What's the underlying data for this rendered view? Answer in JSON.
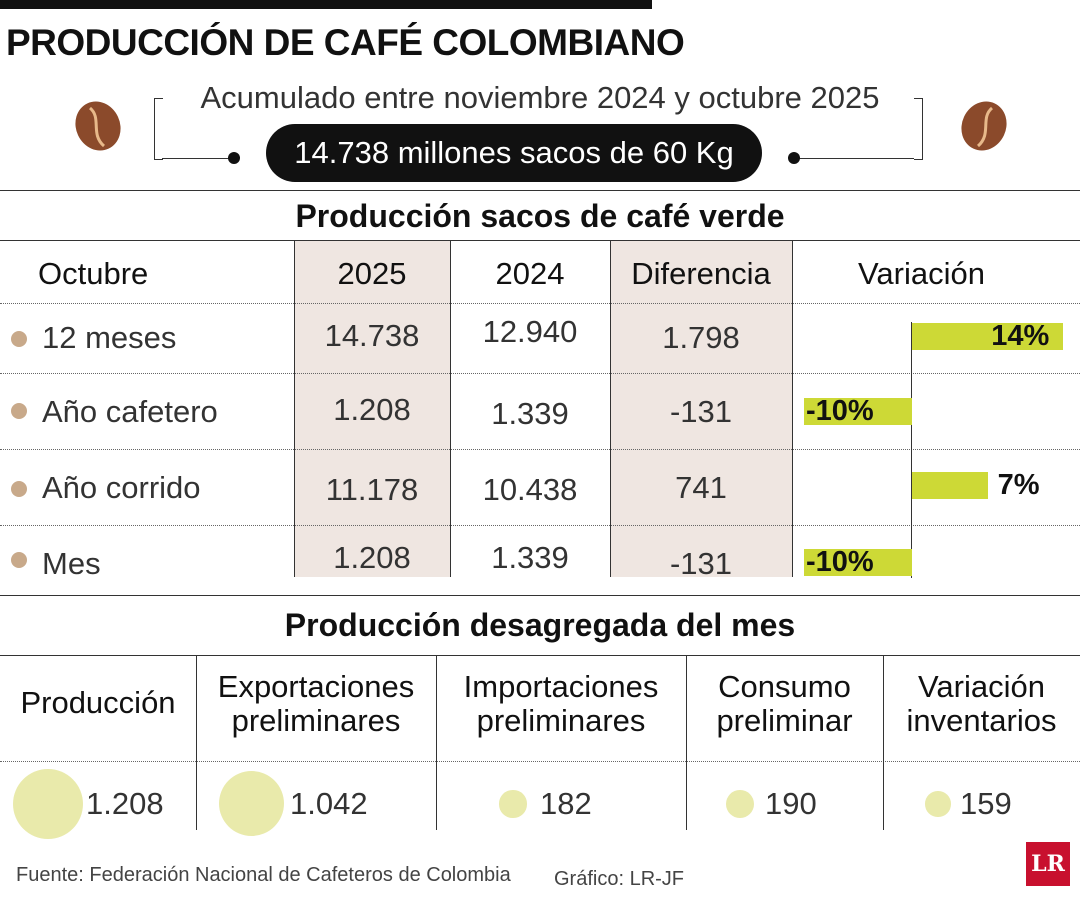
{
  "title": "PRODUCCIÓN DE CAFÉ COLOMBIANO",
  "subtitle": "Acumulado entre noviembre 2024 y octubre 2025",
  "highlight": "14.738 millones sacos de 60 Kg",
  "colors": {
    "bar": "#cdd936",
    "bullet": "#c8a98a",
    "shade": "#efe6e1",
    "circle": "#e9eaab",
    "bean": "#8b4a2b"
  },
  "icons": {
    "left": "coffee-bean-icon",
    "right": "coffee-bean-icon"
  },
  "chart_data": [
    {
      "type": "table",
      "title": "Producción  sacos de café verde",
      "headers": [
        "Octubre",
        "2025",
        "2024",
        "Diferencia",
        "Variación"
      ],
      "rows": [
        {
          "label": "12 meses",
          "v2025": "14.738",
          "v2024": "12.940",
          "diff": "1.798",
          "variation": 14,
          "variation_label": "14%"
        },
        {
          "label": "Año cafetero",
          "v2025": "1.208",
          "v2024": "1.339",
          "diff": "-131",
          "variation": -10,
          "variation_label": "-10%"
        },
        {
          "label": "Año corrido",
          "v2025": "11.178",
          "v2024": "10.438",
          "diff": "741",
          "variation": 7,
          "variation_label": "7%"
        },
        {
          "label": "Mes",
          "v2025": "1.208",
          "v2024": "1.339",
          "diff": "-131",
          "variation": -10,
          "variation_label": "-10%"
        }
      ]
    },
    {
      "type": "scatter",
      "title": "Producción desagregada del mes",
      "categories": [
        {
          "line1": "Producción",
          "line2": "",
          "value": 1208,
          "label": "1.208"
        },
        {
          "line1": "Exportaciones",
          "line2": "preliminares",
          "value": 1042,
          "label": "1.042"
        },
        {
          "line1": "Importaciones",
          "line2": "preliminares",
          "value": 182,
          "label": "182"
        },
        {
          "line1": "Consumo",
          "line2": "preliminar",
          "value": 190,
          "label": "190"
        },
        {
          "line1": "Variación",
          "line2": "inventarios",
          "value": 159,
          "label": "159"
        }
      ]
    }
  ],
  "footer": {
    "source": "Fuente: Federación Nacional de Cafeteros de Colombia",
    "credit": "Gráfico: LR-JF",
    "logo": "LR"
  }
}
